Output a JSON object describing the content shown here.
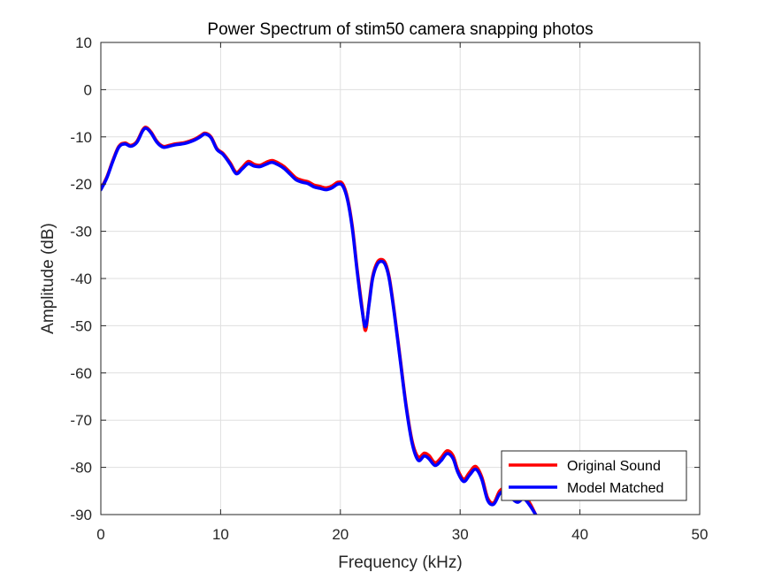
{
  "chart_data": {
    "type": "line",
    "title": "Power Spectrum of stim50 camera snapping photos",
    "xlabel": "Frequency (kHz)",
    "ylabel": "Amplitude (dB)",
    "xlim": [
      0,
      50
    ],
    "ylim": [
      -90,
      10
    ],
    "xticks": [
      0,
      10,
      20,
      30,
      40,
      50
    ],
    "yticks": [
      10,
      0,
      -10,
      -20,
      -30,
      -40,
      -50,
      -60,
      -70,
      -80,
      -90
    ],
    "grid": true,
    "legend_position": "bottom-right",
    "series": [
      {
        "name": "Original Sound",
        "color": "#ff0000",
        "x": [
          0,
          0.5,
          1,
          1.5,
          2,
          2.5,
          3,
          3.5,
          3.8,
          4.2,
          4.7,
          5.2,
          5.7,
          6.2,
          7,
          7.8,
          8.3,
          8.7,
          9.2,
          9.7,
          10.2,
          10.8,
          11.3,
          11.8,
          12.3,
          12.8,
          13.3,
          13.8,
          14.3,
          14.8,
          15.3,
          15.8,
          16.3,
          16.8,
          17.3,
          17.8,
          18.3,
          18.8,
          19.3,
          19.8,
          20.2,
          20.6,
          21,
          21.4,
          21.8,
          22.1,
          22.4,
          22.7,
          23.1,
          23.5,
          23.8,
          24.1,
          24.5,
          25,
          25.5,
          26,
          26.5,
          27,
          27.4,
          27.9,
          28.4,
          28.9,
          29.4,
          29.8,
          30.3,
          30.8,
          31.3,
          31.8,
          32.3,
          32.8,
          33.3,
          33.8,
          34.3,
          34.8,
          35.3,
          35.8,
          36.3
        ],
        "y": [
          -21,
          -18.5,
          -15,
          -12,
          -11.3,
          -11.8,
          -11,
          -8.5,
          -8,
          -9,
          -11,
          -12,
          -11.8,
          -11.5,
          -11.2,
          -10.5,
          -9.8,
          -9.2,
          -10,
          -12.5,
          -13.5,
          -15.5,
          -17.5,
          -16.5,
          -15.2,
          -15.8,
          -16,
          -15.4,
          -15,
          -15.5,
          -16.3,
          -17.5,
          -18.7,
          -19.2,
          -19.5,
          -20.2,
          -20.5,
          -20.8,
          -20.4,
          -19.6,
          -20,
          -23,
          -29,
          -38,
          -46,
          -51,
          -45,
          -39.5,
          -36.5,
          -36,
          -37,
          -40,
          -47,
          -57,
          -67,
          -74.5,
          -77.8,
          -77,
          -77.5,
          -79,
          -78,
          -76.5,
          -77.5,
          -80.5,
          -82.5,
          -81,
          -79.8,
          -82,
          -86.5,
          -87.5,
          -85,
          -84.5,
          -86,
          -87,
          -86,
          -87.5,
          -90
        ]
      },
      {
        "name": "Model Matched",
        "color": "#0000ff",
        "x": [
          0,
          0.5,
          1,
          1.5,
          2,
          2.5,
          3,
          3.5,
          3.8,
          4.2,
          4.7,
          5.2,
          5.7,
          6.2,
          7,
          7.8,
          8.3,
          8.7,
          9.2,
          9.7,
          10.2,
          10.8,
          11.3,
          11.8,
          12.3,
          12.8,
          13.3,
          13.8,
          14.3,
          14.8,
          15.3,
          15.8,
          16.3,
          16.8,
          17.3,
          17.8,
          18.3,
          18.8,
          19.3,
          19.8,
          20.2,
          20.6,
          21,
          21.4,
          21.8,
          22.1,
          22.4,
          22.7,
          23.1,
          23.5,
          23.8,
          24.1,
          24.5,
          25,
          25.5,
          26,
          26.5,
          27,
          27.4,
          27.9,
          28.4,
          28.9,
          29.4,
          29.8,
          30.3,
          30.8,
          31.3,
          31.8,
          32.3,
          32.8,
          33.3,
          33.8,
          34.3,
          34.8,
          35.3,
          35.8,
          36.3
        ],
        "y": [
          -21.2,
          -18.7,
          -15.2,
          -12.2,
          -11.5,
          -12,
          -11.2,
          -8.7,
          -8.2,
          -9.2,
          -11.2,
          -12.2,
          -12,
          -11.7,
          -11.4,
          -10.7,
          -10,
          -9.4,
          -10.2,
          -12.7,
          -13.7,
          -15.8,
          -17.8,
          -16.8,
          -15.7,
          -16.2,
          -16.3,
          -15.8,
          -15.4,
          -15.9,
          -16.7,
          -17.9,
          -19.1,
          -19.6,
          -19.9,
          -20.6,
          -20.9,
          -21.2,
          -20.8,
          -20,
          -20.4,
          -23.4,
          -29.5,
          -38.5,
          -46.5,
          -50.2,
          -45.4,
          -39.9,
          -36.9,
          -36.4,
          -37.4,
          -40.4,
          -47.4,
          -57.4,
          -67.4,
          -75,
          -78.5,
          -77.6,
          -78.2,
          -79.6,
          -78.6,
          -77.1,
          -78.1,
          -81,
          -83,
          -81.6,
          -80.4,
          -82.5,
          -87,
          -87.8,
          -85.6,
          -85,
          -86.5,
          -87.4,
          -86.6,
          -88,
          -90
        ]
      }
    ]
  }
}
